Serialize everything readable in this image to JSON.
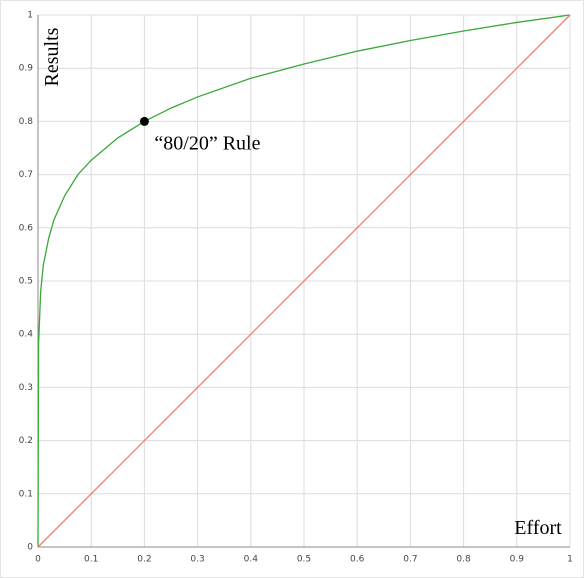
{
  "chart_data": {
    "type": "line",
    "xlabel": "Effort",
    "ylabel": "Results",
    "xlim": [
      0,
      1
    ],
    "ylim": [
      0,
      1
    ],
    "xticks": [
      0,
      0.1,
      0.2,
      0.3,
      0.4,
      0.5,
      0.6,
      0.7,
      0.8,
      0.9,
      1
    ],
    "yticks": [
      0,
      0.1,
      0.2,
      0.3,
      0.4,
      0.5,
      0.6,
      0.7,
      0.8,
      0.9,
      1
    ],
    "grid": true,
    "series": [
      {
        "color": "#3aa83a",
        "x": [
          0,
          0.001,
          0.005,
          0.01,
          0.02,
          0.03,
          0.05,
          0.075,
          0.1,
          0.15,
          0.2,
          0.25,
          0.3,
          0.4,
          0.5,
          0.6,
          0.7,
          0.8,
          0.9,
          1
        ],
        "values": [
          0,
          0.38,
          0.48,
          0.53,
          0.58,
          0.615,
          0.66,
          0.7,
          0.727,
          0.769,
          0.8,
          0.825,
          0.846,
          0.881,
          0.908,
          0.932,
          0.952,
          0.97,
          0.986,
          1
        ]
      },
      {
        "color": "#e8807a",
        "x": [
          0,
          1
        ],
        "values": [
          0,
          1
        ]
      }
    ],
    "annotations": [
      {
        "text": "“80/20” Rule",
        "x": 0.2,
        "y": 0.8
      }
    ]
  }
}
